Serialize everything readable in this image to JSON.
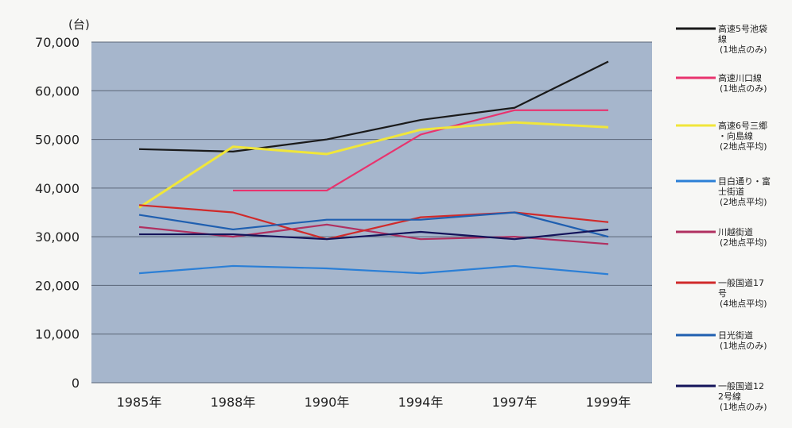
{
  "chart_data": {
    "type": "line",
    "unit_label": "(台)",
    "categories": [
      "1985年",
      "1988年",
      "1990年",
      "1994年",
      "1997年",
      "1999年"
    ],
    "y_ticks": [
      "0",
      "10,000",
      "20,000",
      "30,000",
      "40,000",
      "50,000",
      "60,000",
      "70,000"
    ],
    "ylim": [
      0,
      70000
    ],
    "grid": true,
    "legend_position": "right",
    "series": [
      {
        "name": "高速5号池袋線",
        "note": "(1地点のみ)",
        "color": "#1a1a1a",
        "values": [
          48000,
          47500,
          50000,
          54000,
          56500,
          66000
        ]
      },
      {
        "name": "高速川口線",
        "note": "(1地点のみ)",
        "color": "#e8336e",
        "values": [
          null,
          39500,
          39500,
          51000,
          56000,
          56000
        ]
      },
      {
        "name": "高速6号三郷・向島線",
        "note": "(2地点平均)",
        "color": "#f0e63a",
        "values": [
          36000,
          48500,
          47000,
          52000,
          53500,
          52500
        ]
      },
      {
        "name": "目白通り・富士街道",
        "note": "(2地点平均)",
        "color": "#2b7fd6",
        "values": [
          22500,
          24000,
          23500,
          22500,
          24000,
          22300
        ]
      },
      {
        "name": "川越街道",
        "note": "(2地点平均)",
        "color": "#b03060",
        "values": [
          32000,
          30000,
          32500,
          29500,
          30000,
          28500
        ]
      },
      {
        "name": "一般国道17号",
        "note": "(4地点平均)",
        "color": "#d02a2a",
        "values": [
          36500,
          35000,
          29500,
          34000,
          35000,
          33000
        ]
      },
      {
        "name": "日光街道",
        "note": "(1地点のみ)",
        "color": "#1f5fb0",
        "values": [
          34500,
          31500,
          33500,
          33500,
          35000,
          30000
        ]
      },
      {
        "name": "一般国道122号線",
        "note": "(1地点のみ)",
        "color": "#14145a",
        "values": [
          30500,
          30500,
          29500,
          31000,
          29500,
          31500
        ]
      }
    ]
  }
}
